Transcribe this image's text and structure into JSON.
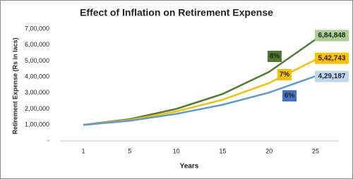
{
  "chart_data": {
    "type": "line",
    "title": "Effect of Inflation on Retirement Expense",
    "x_label": "Years",
    "y_label": "Retirement Expense  (Rs in lacs)",
    "categories": [
      "1",
      "5",
      "10",
      "15",
      "20",
      "25"
    ],
    "series": [
      {
        "name": "8%",
        "color": "#4e7a2e",
        "label_color": "#a9d08e",
        "values": [
          100000,
          136049,
          199900,
          293719,
          431570,
          634118
        ],
        "end_label": {
          "value": 684848,
          "label": "6,84,848"
        }
      },
      {
        "name": "7%",
        "color": "#f5c000",
        "label_color": "#ffc000",
        "values": [
          100000,
          131080,
          183846,
          257853,
          361653,
          507237
        ],
        "end_label": {
          "value": 542743,
          "label": "5,42,743"
        }
      },
      {
        "name": "6%",
        "color": "#5b9bd5",
        "label_color": "#bdd7ee",
        "name_color": "#4472c4",
        "values": [
          100000,
          126248,
          168948,
          226090,
          302560,
          404893
        ],
        "end_label": {
          "value": 429187,
          "label": "4,29,187"
        }
      }
    ],
    "ylim": [
      0,
      700000
    ],
    "yticks": [
      {
        "value": 0,
        "label": "-"
      },
      {
        "value": 100000,
        "label": "1,00,000"
      },
      {
        "value": 200000,
        "label": "2,00,000"
      },
      {
        "value": 300000,
        "label": "3,00,000"
      },
      {
        "value": 400000,
        "label": "4,00,000"
      },
      {
        "value": 500000,
        "label": "5,00,000"
      },
      {
        "value": 600000,
        "label": "6,00,000"
      },
      {
        "value": 700000,
        "label": "7,00,000"
      }
    ],
    "grid": false
  }
}
